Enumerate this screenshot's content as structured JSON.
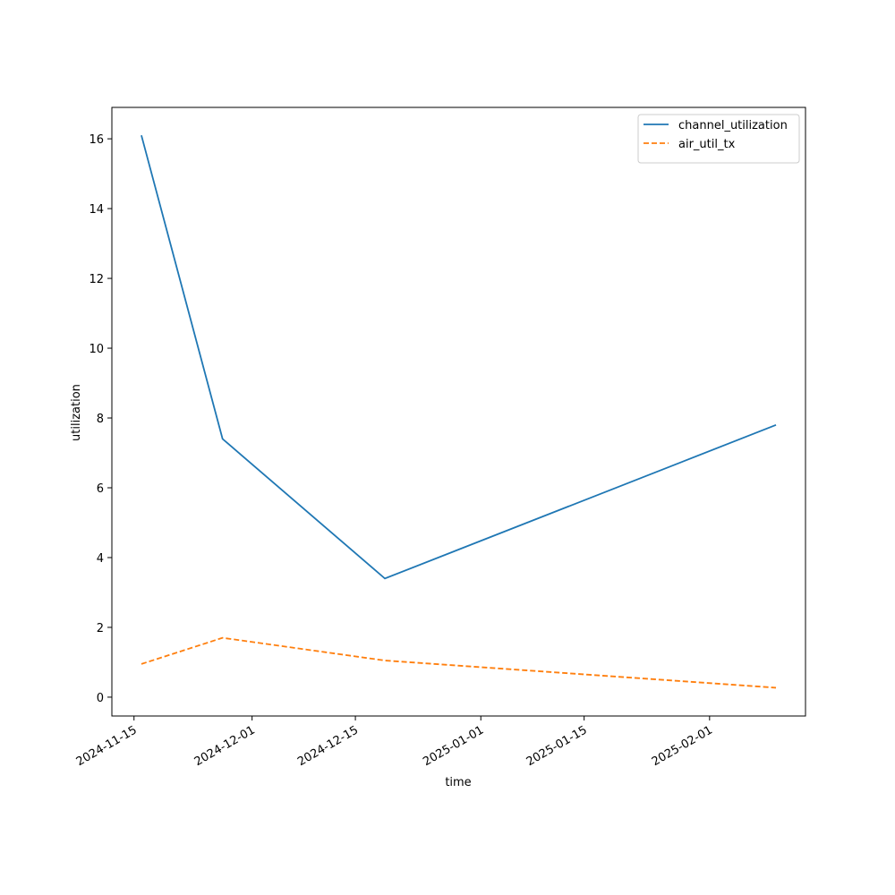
{
  "chart_data": {
    "type": "line",
    "x_label": "time",
    "y_label": "utilization",
    "x": [
      "2024-11-16",
      "2024-11-27",
      "2024-12-19",
      "2025-02-10"
    ],
    "series": [
      {
        "name": "channel_utilization",
        "color": "#1f77b4",
        "dash": "solid",
        "values": [
          16.1,
          7.4,
          3.4,
          7.8
        ]
      },
      {
        "name": "air_util_tx",
        "color": "#ff7f0e",
        "dash": "dashed",
        "values": [
          0.95,
          1.7,
          1.05,
          0.27
        ]
      }
    ],
    "xlim": [
      "2024-11-12",
      "2025-02-14"
    ],
    "xticks": [
      "2024-11-15",
      "2024-12-01",
      "2024-12-15",
      "2025-01-01",
      "2025-01-15",
      "2025-02-01"
    ],
    "ylim": [
      -0.54,
      16.9
    ],
    "yticks": [
      0,
      2,
      4,
      6,
      8,
      10,
      12,
      14,
      16
    ],
    "legend": "upper-right",
    "grid": false
  }
}
